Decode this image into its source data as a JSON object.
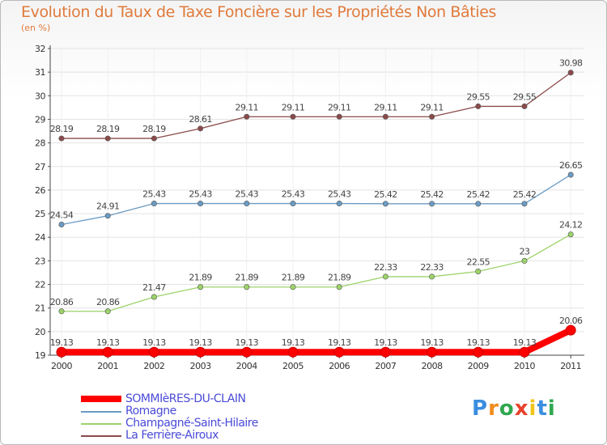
{
  "header": {
    "title": "Evolution du Taux de Taxe Foncière sur les Propriétés Non Bâties",
    "unit": "(en %)"
  },
  "chart_data": {
    "type": "line",
    "title": "Evolution du Taux de Taxe Foncière sur les Propriétés Non Bâties",
    "ylabel": "(en %)",
    "xlabel": "",
    "ylim": [
      19,
      32
    ],
    "categories": [
      "2000",
      "2001",
      "2002",
      "2003",
      "2004",
      "2005",
      "2006",
      "2007",
      "2008",
      "2009",
      "2010",
      "2011"
    ],
    "yticks": [
      "19",
      "20",
      "21",
      "22",
      "23",
      "24",
      "25",
      "26",
      "27",
      "28",
      "29",
      "30",
      "31",
      "32"
    ],
    "series": [
      {
        "name": "SOMMIèRES-DU-CLAIN",
        "color": "#ff0000",
        "values": [
          19.13,
          19.13,
          19.13,
          19.13,
          19.13,
          19.13,
          19.13,
          19.13,
          19.13,
          19.13,
          19.13,
          20.06
        ],
        "labels": [
          "19.13",
          "19.13",
          "19.13",
          "19.13",
          "19.13",
          "19.13",
          "19.13",
          "19.13",
          "19.13",
          "19.13",
          "19.13",
          "20.06"
        ]
      },
      {
        "name": "Romagne",
        "color": "#6b9bc3",
        "values": [
          24.54,
          24.91,
          25.43,
          25.43,
          25.43,
          25.43,
          25.43,
          25.42,
          25.42,
          25.42,
          25.42,
          26.65
        ],
        "labels": [
          "24.54",
          "24.91",
          "25.43",
          "25.43",
          "25.43",
          "25.43",
          "25.43",
          "25.42",
          "25.42",
          "25.42",
          "25.42",
          "26.65"
        ]
      },
      {
        "name": "Champagné-Saint-Hilaire",
        "color": "#9cd36a",
        "values": [
          20.86,
          20.86,
          21.47,
          21.89,
          21.89,
          21.89,
          21.89,
          22.33,
          22.33,
          22.55,
          23,
          24.12
        ],
        "labels": [
          "20.86",
          "20.86",
          "21.47",
          "21.89",
          "21.89",
          "21.89",
          "21.89",
          "22.33",
          "22.33",
          "22.55",
          "23",
          "24.12"
        ]
      },
      {
        "name": "La Ferrière-Airoux",
        "color": "#8b4a4a",
        "values": [
          28.19,
          28.19,
          28.19,
          28.61,
          29.11,
          29.11,
          29.11,
          29.11,
          29.11,
          29.55,
          29.55,
          30.98
        ],
        "labels": [
          "28.19",
          "28.19",
          "28.19",
          "28.61",
          "29.11",
          "29.11",
          "29.11",
          "29.11",
          "29.11",
          "29.55",
          "29.55",
          "30.98"
        ]
      }
    ],
    "legend": "bottom-left"
  },
  "legend": {
    "items": [
      {
        "label": "SOMMIèRES-DU-CLAIN",
        "color": "#ff0000"
      },
      {
        "label": "Romagne",
        "color": "#6b9bc3"
      },
      {
        "label": "Champagné-Saint-Hilaire",
        "color": "#9cd36a"
      },
      {
        "label": "La Ferrière-Airoux",
        "color": "#8b4a4a"
      }
    ]
  },
  "logo": {
    "letters": [
      "P",
      "r",
      "o",
      "x",
      "i",
      "t",
      "i"
    ],
    "colors": [
      "#3a8de0",
      "#f08b1c",
      "#2fa84f",
      "#e8412b",
      "#f0c419",
      "#3a8de0",
      "#2fa84f"
    ]
  }
}
